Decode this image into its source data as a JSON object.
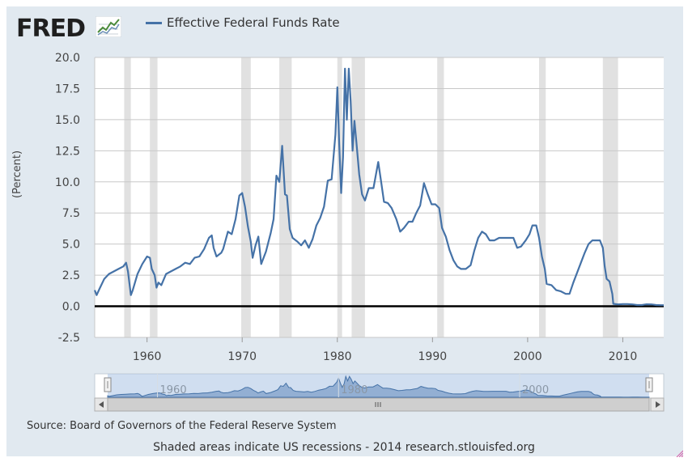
{
  "header": {
    "logo_text": "FRED",
    "logo_mark_icon": "chart-sparkline-icon"
  },
  "legend": {
    "series_label": "Effective Federal Funds Rate",
    "series_color": "#4572a7"
  },
  "source_text": "Source: Board of Governors of the Federal Reserve System",
  "footnote_text": "Shaded areas indicate US recessions - 2014 research.stlouisfed.org",
  "navigator": {
    "tick_labels": [
      "1960",
      "1980",
      "2000"
    ],
    "scroll_icon": "scrollbar-grip-icon"
  },
  "chart_data": {
    "type": "line",
    "title": "",
    "xlabel": "",
    "ylabel": "(Percent)",
    "xlim": [
      1954.5,
      2014.3
    ],
    "ylim": [
      -2.5,
      20.0
    ],
    "yticks": [
      -2.5,
      0.0,
      2.5,
      5.0,
      7.5,
      10.0,
      12.5,
      15.0,
      17.5,
      20.0
    ],
    "ytick_labels": [
      "-2.5",
      "0.0",
      "2.5",
      "5.0",
      "7.5",
      "10.0",
      "12.5",
      "15.0",
      "17.5",
      "20.0"
    ],
    "xticks": [
      1960,
      1970,
      1980,
      1990,
      2000,
      2010
    ],
    "xtick_labels": [
      "1960",
      "1970",
      "1980",
      "1990",
      "2000",
      "2010"
    ],
    "grid": true,
    "legend_position": "top",
    "recessions": [
      [
        1957.6,
        1958.3
      ],
      [
        1960.3,
        1961.1
      ],
      [
        1969.9,
        1970.9
      ],
      [
        1973.9,
        1975.2
      ],
      [
        1980.0,
        1980.5
      ],
      [
        1981.5,
        1982.9
      ],
      [
        1990.5,
        1991.2
      ],
      [
        2001.2,
        2001.9
      ],
      [
        2007.9,
        2009.5
      ]
    ],
    "series": [
      {
        "name": "Effective Federal Funds Rate",
        "x": [
          1954.5,
          1954.7,
          1955.0,
          1955.5,
          1956.0,
          1956.5,
          1957.0,
          1957.5,
          1957.8,
          1958.0,
          1958.3,
          1958.5,
          1959.0,
          1959.5,
          1960.0,
          1960.3,
          1960.5,
          1960.8,
          1961.0,
          1961.2,
          1961.5,
          1962.0,
          1962.5,
          1963.0,
          1963.5,
          1964.0,
          1964.5,
          1965.0,
          1965.5,
          1966.0,
          1966.5,
          1966.8,
          1967.0,
          1967.3,
          1967.8,
          1968.0,
          1968.5,
          1968.9,
          1969.3,
          1969.7,
          1970.0,
          1970.3,
          1970.6,
          1970.9,
          1971.1,
          1971.4,
          1971.7,
          1972.0,
          1972.5,
          1973.0,
          1973.3,
          1973.6,
          1973.9,
          1974.2,
          1974.5,
          1974.7,
          1975.0,
          1975.3,
          1975.8,
          1976.2,
          1976.6,
          1977.0,
          1977.4,
          1977.8,
          1978.2,
          1978.6,
          1979.0,
          1979.4,
          1979.8,
          1980.0,
          1980.2,
          1980.4,
          1980.6,
          1980.8,
          1981.0,
          1981.2,
          1981.4,
          1981.6,
          1981.8,
          1982.0,
          1982.3,
          1982.6,
          1982.9,
          1983.3,
          1983.8,
          1984.3,
          1984.6,
          1984.9,
          1985.3,
          1985.7,
          1986.2,
          1986.6,
          1987.0,
          1987.5,
          1987.9,
          1988.3,
          1988.7,
          1989.1,
          1989.5,
          1989.9,
          1990.3,
          1990.7,
          1991.0,
          1991.4,
          1991.8,
          1992.2,
          1992.6,
          1993.0,
          1993.5,
          1994.0,
          1994.4,
          1994.8,
          1995.2,
          1995.6,
          1996.0,
          1996.5,
          1997.0,
          1997.5,
          1998.0,
          1998.5,
          1998.9,
          1999.3,
          1999.8,
          2000.2,
          2000.5,
          2000.9,
          2001.2,
          2001.5,
          2001.8,
          2002.0,
          2002.5,
          2003.0,
          2003.5,
          2004.0,
          2004.4,
          2004.8,
          2005.2,
          2005.6,
          2006.0,
          2006.4,
          2006.8,
          2007.2,
          2007.6,
          2007.9,
          2008.1,
          2008.3,
          2008.6,
          2008.9,
          2009.0,
          2009.5,
          2010.0,
          2010.5,
          2011.0,
          2011.5,
          2012.0,
          2012.5,
          2013.0,
          2013.5,
          2014.0,
          2014.3
        ],
        "values": [
          1.3,
          0.9,
          1.4,
          2.2,
          2.6,
          2.8,
          3.0,
          3.2,
          3.5,
          2.8,
          0.9,
          1.3,
          2.6,
          3.4,
          4.0,
          3.9,
          3.0,
          2.5,
          1.5,
          1.9,
          1.7,
          2.6,
          2.8,
          3.0,
          3.2,
          3.5,
          3.4,
          3.9,
          4.0,
          4.6,
          5.5,
          5.7,
          4.7,
          4.0,
          4.3,
          4.6,
          6.0,
          5.8,
          7.0,
          8.9,
          9.1,
          8.0,
          6.4,
          5.2,
          3.9,
          4.9,
          5.6,
          3.4,
          4.4,
          5.9,
          7.0,
          10.5,
          10.0,
          12.9,
          9.0,
          8.9,
          6.2,
          5.5,
          5.2,
          4.9,
          5.3,
          4.7,
          5.4,
          6.5,
          7.1,
          8.0,
          10.1,
          10.2,
          13.8,
          17.6,
          13.0,
          9.1,
          12.0,
          19.1,
          15.0,
          19.1,
          16.5,
          12.5,
          14.9,
          13.2,
          10.6,
          9.0,
          8.5,
          9.5,
          9.5,
          11.6,
          10.0,
          8.4,
          8.3,
          7.9,
          7.0,
          6.0,
          6.3,
          6.8,
          6.8,
          7.5,
          8.1,
          9.9,
          9.0,
          8.2,
          8.2,
          7.9,
          6.3,
          5.6,
          4.5,
          3.7,
          3.2,
          3.0,
          3.0,
          3.3,
          4.5,
          5.5,
          6.0,
          5.8,
          5.3,
          5.3,
          5.5,
          5.5,
          5.5,
          5.5,
          4.7,
          4.8,
          5.3,
          5.8,
          6.5,
          6.5,
          5.5,
          4.0,
          3.0,
          1.8,
          1.7,
          1.3,
          1.2,
          1.0,
          1.0,
          1.9,
          2.7,
          3.5,
          4.3,
          5.0,
          5.3,
          5.3,
          5.3,
          4.7,
          3.2,
          2.2,
          2.0,
          1.0,
          0.2,
          0.15,
          0.18,
          0.18,
          0.15,
          0.1,
          0.1,
          0.16,
          0.15,
          0.1,
          0.09,
          0.09
        ]
      }
    ]
  }
}
